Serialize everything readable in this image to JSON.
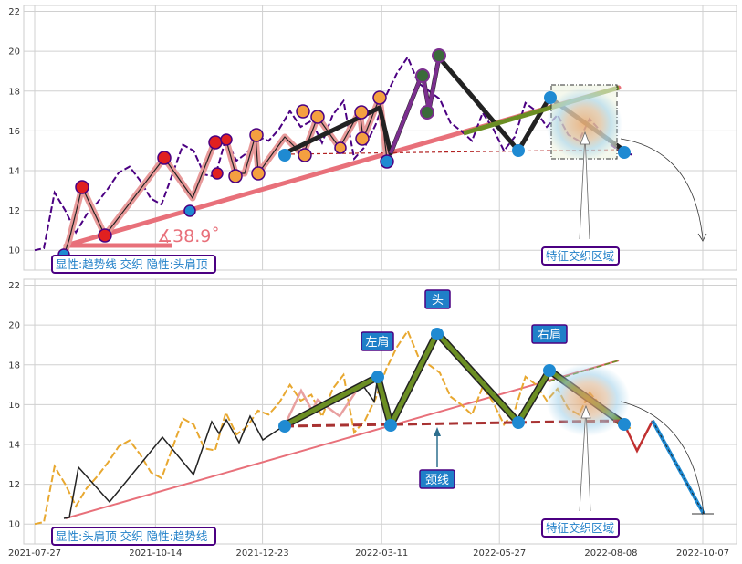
{
  "chart_data": [
    {
      "type": "line",
      "panel": "top",
      "x_ticks": [],
      "y_ticks": [
        "10",
        "12",
        "14",
        "16",
        "18",
        "20",
        "22"
      ],
      "ylim": [
        9,
        22.3
      ],
      "grid": true,
      "series": [
        {
          "x": [
            "2021-07-27",
            "2021-08-02",
            "2021-08-09",
            "2021-08-16",
            "2021-08-23",
            "2021-08-30",
            "2021-09-06",
            "2021-09-13",
            "2021-09-20",
            "2021-09-27",
            "2021-10-04",
            "2021-10-11",
            "2021-10-18",
            "2021-10-25",
            "2021-11-01",
            "2021-11-08",
            "2021-11-15",
            "2021-11-22",
            "2021-11-29",
            "2021-12-06",
            "2021-12-13",
            "2021-12-20",
            "2021-12-27",
            "2022-01-03",
            "2022-01-10",
            "2022-01-17",
            "2022-01-24",
            "2022-01-31",
            "2022-02-07",
            "2022-02-14",
            "2022-02-21",
            "2022-02-28",
            "2022-03-07",
            "2022-03-14",
            "2022-03-21",
            "2022-03-28",
            "2022-04-04",
            "2022-04-11",
            "2022-04-18",
            "2022-04-25",
            "2022-05-02",
            "2022-05-09",
            "2022-05-16",
            "2022-05-23",
            "2022-05-30",
            "2022-06-06",
            "2022-06-13",
            "2022-06-20",
            "2022-06-27",
            "2022-07-04",
            "2022-07-11",
            "2022-07-18",
            "2022-07-25",
            "2022-08-01",
            "2022-08-08",
            "2022-08-15",
            "2022-08-22"
          ],
          "values": [
            10.0,
            10.1,
            12.9,
            12.0,
            10.9,
            11.8,
            12.4,
            13.1,
            13.9,
            14.2,
            13.5,
            12.6,
            12.3,
            13.8,
            15.3,
            15.0,
            13.8,
            13.7,
            15.6,
            14.5,
            14.9,
            15.7,
            15.5,
            16.1,
            17.0,
            16.2,
            16.5,
            15.4,
            16.8,
            17.5,
            14.6,
            15.2,
            16.3,
            17.8,
            18.9,
            19.7,
            18.4,
            18.0,
            17.6,
            16.4,
            16.0,
            15.5,
            16.9,
            16.1,
            15.0,
            15.7,
            17.4,
            17.0,
            16.2,
            16.8,
            15.8,
            15.5,
            16.6,
            16.0,
            15.3,
            14.9,
            14.8
          ]
        }
      ]
    },
    {
      "type": "line",
      "panel": "bottom",
      "x_ticks": [
        "2021-07-27",
        "2021-10-14",
        "2021-12-23",
        "2022-03-11",
        "2022-05-27",
        "2022-08-08",
        "2022-10-07"
      ],
      "y_ticks": [
        "10",
        "12",
        "14",
        "16",
        "18",
        "20",
        "22"
      ],
      "ylim": [
        9,
        22.3
      ],
      "grid": true
    }
  ],
  "top_panel": {
    "angle_label": "∡38.9˚",
    "legend_text": "显性:趋势线 交织 隐性:头肩顶",
    "zone_label": "特征交织区域"
  },
  "bottom_panel": {
    "label_head": "头",
    "label_left_shoulder": "左肩",
    "label_right_shoulder": "右肩",
    "label_neckline": "颈线",
    "legend_text": "显性:头肩顶 交织 隐性:趋势线",
    "zone_label": "特征交织区域"
  },
  "colors": {
    "trend": "#e8707a",
    "pattern_green": "#6b8e23",
    "dark_line": "#222222",
    "price_purple": "#4b0082",
    "price_orange": "#e8a830",
    "blue_marker": "#1f8ad2",
    "label_bg": "#1f7fc8",
    "label_border": "#4b0082"
  }
}
